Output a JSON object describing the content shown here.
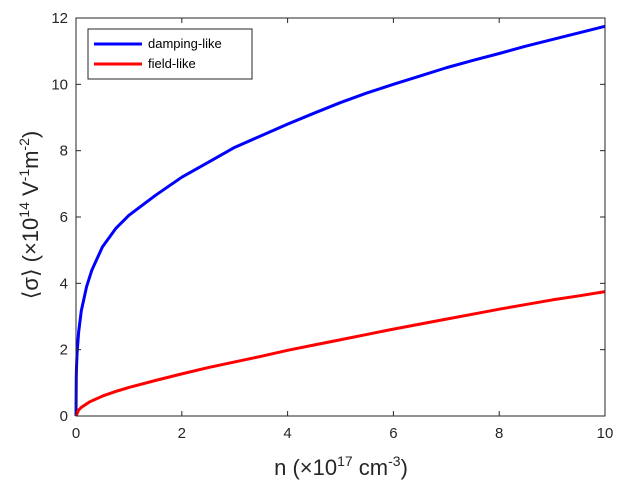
{
  "chart_data": {
    "type": "line",
    "xlabel": {
      "main": "n (×10",
      "sup": "17",
      "mid": " cm",
      "sup2": "-3",
      "end": ")"
    },
    "ylabel": {
      "main": "⟨σ⟩ (×10",
      "sup": "14",
      "mid": " V",
      "sup2": "-1",
      "mid2": "m",
      "sup3": "-2",
      "end": ")"
    },
    "xlim": [
      0,
      10
    ],
    "ylim": [
      0,
      12
    ],
    "xticks": [
      "0",
      "2",
      "4",
      "6",
      "8",
      "10"
    ],
    "yticks": [
      "0",
      "2",
      "4",
      "6",
      "8",
      "10",
      "12"
    ],
    "grid": false,
    "legend_position": "top-left",
    "series": [
      {
        "name": "damping-like",
        "color": "#0000ff",
        "x": [
          0,
          0.005,
          0.01,
          0.02,
          0.05,
          0.1,
          0.2,
          0.3,
          0.5,
          0.75,
          1,
          1.5,
          2,
          2.5,
          3,
          3.5,
          4,
          4.5,
          5,
          5.5,
          6,
          6.5,
          7,
          7.5,
          8,
          8.5,
          9,
          9.5,
          10
        ],
        "y": [
          0,
          1.17,
          1.49,
          1.89,
          2.53,
          3.17,
          3.9,
          4.4,
          5.1,
          5.65,
          6.05,
          6.65,
          7.2,
          7.65,
          8.1,
          8.45,
          8.8,
          9.13,
          9.45,
          9.74,
          10.0,
          10.25,
          10.5,
          10.72,
          10.93,
          11.15,
          11.35,
          11.55,
          11.75
        ]
      },
      {
        "name": "field-like",
        "color": "#ff0000",
        "x": [
          0,
          0.05,
          0.1,
          0.25,
          0.5,
          0.75,
          1,
          1.5,
          2,
          2.5,
          3,
          3.5,
          4,
          4.5,
          5,
          5.5,
          6,
          6.5,
          7,
          7.5,
          8,
          8.5,
          9,
          9.5,
          10
        ],
        "y": [
          0,
          0.18,
          0.26,
          0.42,
          0.6,
          0.74,
          0.86,
          1.07,
          1.27,
          1.46,
          1.63,
          1.8,
          1.98,
          2.14,
          2.3,
          2.46,
          2.62,
          2.77,
          2.92,
          3.07,
          3.22,
          3.36,
          3.5,
          3.62,
          3.75
        ]
      }
    ]
  },
  "colors": {
    "axes": "#262626",
    "legend_border": "#262626"
  }
}
